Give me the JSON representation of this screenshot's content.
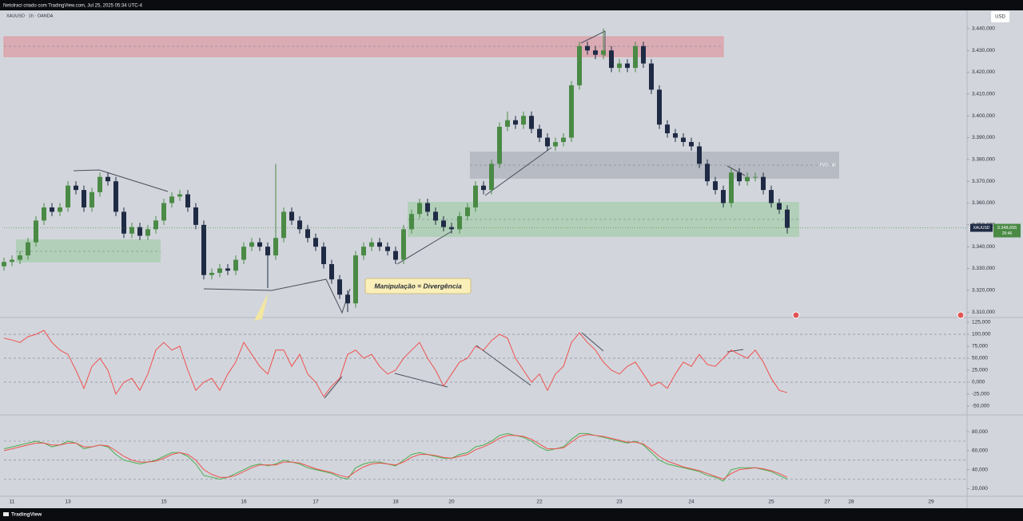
{
  "toolbar": {
    "caption": "Netolraci criado com TradingView.com, Jul 25, 2025 05:34 UTC-4",
    "currency": "USD",
    "brand": "TradingView"
  },
  "chart_data": {
    "type": "candlestick",
    "symbol": "XAUUSD · 1h · OANDA",
    "up_color": "#4a8a45",
    "down_color": "#1f2a44",
    "grid": false,
    "categories": [
      null,
      "11",
      null,
      null,
      null,
      null,
      null,
      null,
      "13",
      null,
      null,
      null,
      null,
      null,
      null,
      null,
      null,
      null,
      null,
      null,
      "15",
      null,
      null,
      null,
      null,
      null,
      null,
      null,
      null,
      null,
      "16",
      null,
      null,
      null,
      null,
      null,
      null,
      null,
      null,
      "17",
      null,
      null,
      null,
      null,
      null,
      null,
      null,
      null,
      null,
      "18",
      null,
      null,
      null,
      null,
      null,
      null,
      "20",
      null,
      null,
      null,
      null,
      null,
      null,
      null,
      null,
      null,
      null,
      "22",
      null,
      null,
      null,
      null,
      null,
      null,
      null,
      null,
      null,
      "23",
      null,
      null,
      null,
      null,
      null,
      null,
      null,
      null,
      "24",
      null,
      null,
      null,
      null,
      null,
      null,
      null,
      null,
      null,
      "25",
      null,
      null,
      null,
      null,
      null,
      null,
      "27",
      null,
      null,
      "28",
      null,
      null,
      null,
      null,
      null,
      null,
      null,
      null,
      null,
      "29",
      null,
      null,
      null
    ],
    "open": [
      3331,
      3333,
      3334,
      3336,
      3342,
      3352,
      3358,
      3356,
      3358,
      3368,
      3366,
      3358,
      3365,
      3372,
      3370,
      3356,
      3346,
      3349,
      3345,
      3348,
      3352,
      3360,
      3363,
      3364,
      3358,
      3350,
      3327,
      3328,
      3330,
      3329,
      3334,
      3340,
      3342,
      3340,
      3336,
      3344,
      3356,
      3352,
      3348,
      3344,
      3340,
      3332,
      3325,
      3318,
      3314,
      3336,
      3340,
      3342,
      3340,
      3338,
      3334,
      3348,
      3355,
      3360,
      3356,
      3352,
      3349,
      3348,
      3354,
      3358,
      3368,
      3366,
      3378,
      3395,
      3398,
      3396,
      3400,
      3394,
      3390,
      3386,
      3388,
      3390,
      3414,
      3432,
      3430,
      3428,
      3430,
      3422,
      3424,
      3422,
      3432,
      3424,
      3412,
      3396,
      3392,
      3390,
      3388,
      3386,
      3378,
      3370,
      3366,
      3360,
      3374,
      3370,
      3372,
      3372,
      3366,
      3360,
      3357,
      null,
      null,
      null,
      null,
      null,
      null,
      null,
      null,
      null,
      null,
      null,
      null,
      null,
      null,
      null,
      null,
      null,
      null,
      null,
      null,
      null
    ],
    "high": [
      3335,
      3336,
      3338,
      3344,
      3354,
      3360,
      3360,
      3360,
      3370,
      3370,
      3368,
      3367,
      3374,
      3374,
      3372,
      3358,
      3351,
      3351,
      3350,
      3354,
      3362,
      3365,
      3366,
      3366,
      3360,
      3352,
      3330,
      3332,
      3332,
      3336,
      3342,
      3344,
      3344,
      3342,
      3378,
      3358,
      3358,
      3354,
      3350,
      3346,
      3342,
      3334,
      3327,
      3320,
      3338,
      3342,
      3344,
      3344,
      3342,
      3340,
      3350,
      3357,
      3362,
      3362,
      3358,
      3354,
      3351,
      3356,
      3360,
      3370,
      3370,
      3380,
      3397,
      3402,
      3400,
      3402,
      3402,
      3396,
      3392,
      3390,
      3392,
      3416,
      3434,
      3434,
      3432,
      3440,
      3432,
      3426,
      3426,
      3434,
      3434,
      3426,
      3414,
      3398,
      3394,
      3392,
      3390,
      3388,
      3380,
      3372,
      3368,
      3376,
      3376,
      3374,
      3374,
      3374,
      3368,
      3362,
      3359,
      null,
      null,
      null,
      null,
      null,
      null,
      null,
      null,
      null,
      null,
      null,
      null,
      null,
      null,
      null,
      null,
      null,
      null,
      null,
      null,
      null
    ],
    "low": [
      3329,
      3331,
      3332,
      3334,
      3340,
      3350,
      3354,
      3354,
      3356,
      3364,
      3356,
      3356,
      3363,
      3368,
      3354,
      3344,
      3344,
      3343,
      3343,
      3346,
      3350,
      3358,
      3361,
      3356,
      3348,
      3325,
      3325,
      3326,
      3327,
      3327,
      3332,
      3338,
      3338,
      3321,
      3334,
      3342,
      3350,
      3346,
      3342,
      3338,
      3330,
      3323,
      3316,
      3310,
      3312,
      3334,
      3338,
      3338,
      3336,
      3332,
      3332,
      3346,
      3353,
      3354,
      3350,
      3347,
      3346,
      3346,
      3352,
      3356,
      3364,
      3364,
      3376,
      3393,
      3394,
      3394,
      3392,
      3388,
      3384,
      3384,
      3386,
      3388,
      3412,
      3428,
      3426,
      3426,
      3420,
      3420,
      3420,
      3420,
      3422,
      3410,
      3394,
      3390,
      3388,
      3386,
      3384,
      3376,
      3368,
      3364,
      3358,
      3358,
      3368,
      3368,
      3370,
      3364,
      3358,
      3355,
      3346,
      null,
      null,
      null,
      null,
      null,
      null,
      null,
      null,
      null,
      null,
      null,
      null,
      null,
      null,
      null,
      null,
      null,
      null,
      null,
      null,
      null
    ],
    "close": [
      3333,
      3334,
      3336,
      3342,
      3352,
      3358,
      3356,
      3358,
      3368,
      3366,
      3358,
      3365,
      3372,
      3370,
      3356,
      3346,
      3349,
      3345,
      3348,
      3352,
      3360,
      3363,
      3364,
      3358,
      3350,
      3327,
      3328,
      3330,
      3329,
      3334,
      3340,
      3342,
      3340,
      3336,
      3344,
      3356,
      3352,
      3348,
      3344,
      3340,
      3332,
      3325,
      3318,
      3314,
      3336,
      3340,
      3342,
      3340,
      3338,
      3334,
      3348,
      3355,
      3360,
      3356,
      3352,
      3349,
      3348,
      3354,
      3358,
      3368,
      3366,
      3378,
      3395,
      3398,
      3396,
      3400,
      3394,
      3390,
      3386,
      3388,
      3390,
      3414,
      3432,
      3430,
      3428,
      3430,
      3422,
      3424,
      3422,
      3432,
      3424,
      3412,
      3396,
      3392,
      3390,
      3388,
      3386,
      3378,
      3370,
      3366,
      3360,
      3374,
      3370,
      3372,
      3372,
      3366,
      3360,
      3357,
      3348.655,
      null,
      null,
      null,
      null,
      null,
      null,
      null,
      null,
      null,
      null,
      null,
      null,
      null,
      null,
      null,
      null,
      null,
      null,
      null,
      null,
      null
    ],
    "ylim": [
      3307.5,
      3448
    ],
    "yticks": [
      {
        "value": 3440,
        "label": "3.440,000"
      },
      {
        "value": 3430,
        "label": "3.430,000"
      },
      {
        "value": 3420,
        "label": "3.420,000"
      },
      {
        "value": 3410,
        "label": "3.410,000"
      },
      {
        "value": 3400,
        "label": "3.400,000"
      },
      {
        "value": 3390,
        "label": "3.390,000"
      },
      {
        "value": 3380,
        "label": "3.380,000"
      },
      {
        "value": 3370,
        "label": "3.370,000"
      },
      {
        "value": 3360,
        "label": "3.360,000"
      },
      {
        "value": 3350,
        "label": "3.350,000"
      },
      {
        "value": 3340,
        "label": "3.340,000"
      },
      {
        "value": 3330,
        "label": "3.330,000"
      },
      {
        "value": 3320,
        "label": "3.320,000"
      },
      {
        "value": 3310,
        "label": "3.310,000"
      }
    ],
    "last_price": {
      "value": 3348.655,
      "label": "3.348,655",
      "symbol": "XAUUSD",
      "countdown": "25:46"
    },
    "annotations": [
      "Manipulação = Divergência",
      "FVG - 4h"
    ],
    "panels": [
      {
        "type": "line",
        "ylim": [
          -65,
          135
        ],
        "yticks": [
          {
            "value": 125,
            "label": "125,000"
          },
          {
            "value": 100,
            "label": "100,000"
          },
          {
            "value": 75,
            "label": "75,000"
          },
          {
            "value": 50,
            "label": "50,000"
          },
          {
            "value": 25,
            "label": "25,000"
          },
          {
            "value": 0,
            "label": "0,000"
          },
          {
            "value": -25,
            "label": "-25,000"
          },
          {
            "value": -50,
            "label": "-50,000"
          }
        ],
        "levels": [
          100,
          50,
          0
        ],
        "series": [
          {
            "color": "#f0524f",
            "values": [
              92,
              88,
              83,
              95,
              100,
              108,
              83,
              67,
              58,
              25,
              -13,
              33,
              50,
              25,
              -25,
              0,
              8,
              -17,
              17,
              67,
              83,
              67,
              75,
              25,
              -17,
              0,
              8,
              -17,
              17,
              42,
              83,
              58,
              33,
              17,
              67,
              67,
              33,
              58,
              17,
              0,
              -30,
              -8,
              8,
              58,
              67,
              50,
              58,
              33,
              17,
              25,
              50,
              67,
              83,
              50,
              25,
              -8,
              17,
              42,
              50,
              75,
              67,
              87,
              100,
              92,
              50,
              25,
              0,
              17,
              -17,
              17,
              33,
              83,
              103,
              83,
              67,
              42,
              25,
              17,
              33,
              42,
              17,
              -8,
              0,
              -13,
              17,
              42,
              33,
              58,
              37,
              33,
              50,
              67,
              58,
              50,
              67,
              42,
              8,
              -17,
              -22,
              null,
              null,
              null,
              null,
              null,
              null,
              null,
              null,
              null,
              null,
              null,
              null,
              null,
              null,
              null,
              null,
              null,
              null,
              null,
              null,
              null
            ]
          }
        ]
      },
      {
        "type": "line",
        "ylim": [
          12,
          96
        ],
        "yticks": [
          {
            "value": 80,
            "label": "80,000"
          },
          {
            "value": 60,
            "label": "60,000"
          },
          {
            "value": 40,
            "label": "40,000"
          },
          {
            "value": 20,
            "label": "20,000"
          }
        ],
        "levels": [
          70,
          50,
          30
        ],
        "series": [
          {
            "color": "#4caf50",
            "values": [
              62,
              64,
              66,
              68,
              70,
              68,
              64,
              66,
              70,
              68,
              62,
              64,
              66,
              64,
              56,
              50,
              48,
              46,
              48,
              50,
              54,
              58,
              58,
              54,
              46,
              34,
              32,
              30,
              32,
              36,
              40,
              44,
              46,
              44,
              46,
              50,
              48,
              46,
              42,
              40,
              38,
              36,
              32,
              30,
              42,
              46,
              48,
              48,
              46,
              44,
              50,
              56,
              58,
              56,
              54,
              52,
              52,
              56,
              58,
              64,
              66,
              70,
              76,
              78,
              76,
              74,
              70,
              64,
              60,
              62,
              64,
              72,
              78,
              78,
              76,
              74,
              72,
              70,
              68,
              70,
              66,
              58,
              50,
              46,
              44,
              42,
              40,
              38,
              34,
              32,
              28,
              40,
              42,
              42,
              42,
              40,
              38,
              34,
              30,
              null,
              null,
              null,
              null,
              null,
              null,
              null,
              null,
              null,
              null,
              null,
              null,
              null,
              null,
              null,
              null,
              null,
              null,
              null,
              null,
              null
            ]
          },
          {
            "color": "#f0524f",
            "values": [
              60,
              62,
              64,
              66,
              68,
              68,
              66,
              66,
              68,
              68,
              64,
              64,
              66,
              65,
              60,
              54,
              50,
              48,
              48,
              49,
              52,
              56,
              58,
              56,
              50,
              40,
              35,
              32,
              32,
              34,
              38,
              42,
              45,
              45,
              45,
              48,
              48,
              47,
              44,
              41,
              39,
              37,
              34,
              32,
              38,
              43,
              46,
              47,
              46,
              45,
              48,
              53,
              56,
              56,
              55,
              53,
              52,
              54,
              56,
              61,
              64,
              68,
              73,
              76,
              76,
              75,
              72,
              67,
              62,
              62,
              63,
              69,
              75,
              77,
              76,
              75,
              73,
              71,
              69,
              69,
              67,
              61,
              54,
              49,
              46,
              43,
              41,
              39,
              36,
              33,
              30,
              36,
              40,
              41,
              42,
              41,
              39,
              36,
              32,
              null,
              null,
              null,
              null,
              null,
              null,
              null,
              null,
              null,
              null,
              null,
              null,
              null,
              null,
              null,
              null,
              null,
              null,
              null,
              null,
              null
            ]
          }
        ]
      }
    ]
  }
}
